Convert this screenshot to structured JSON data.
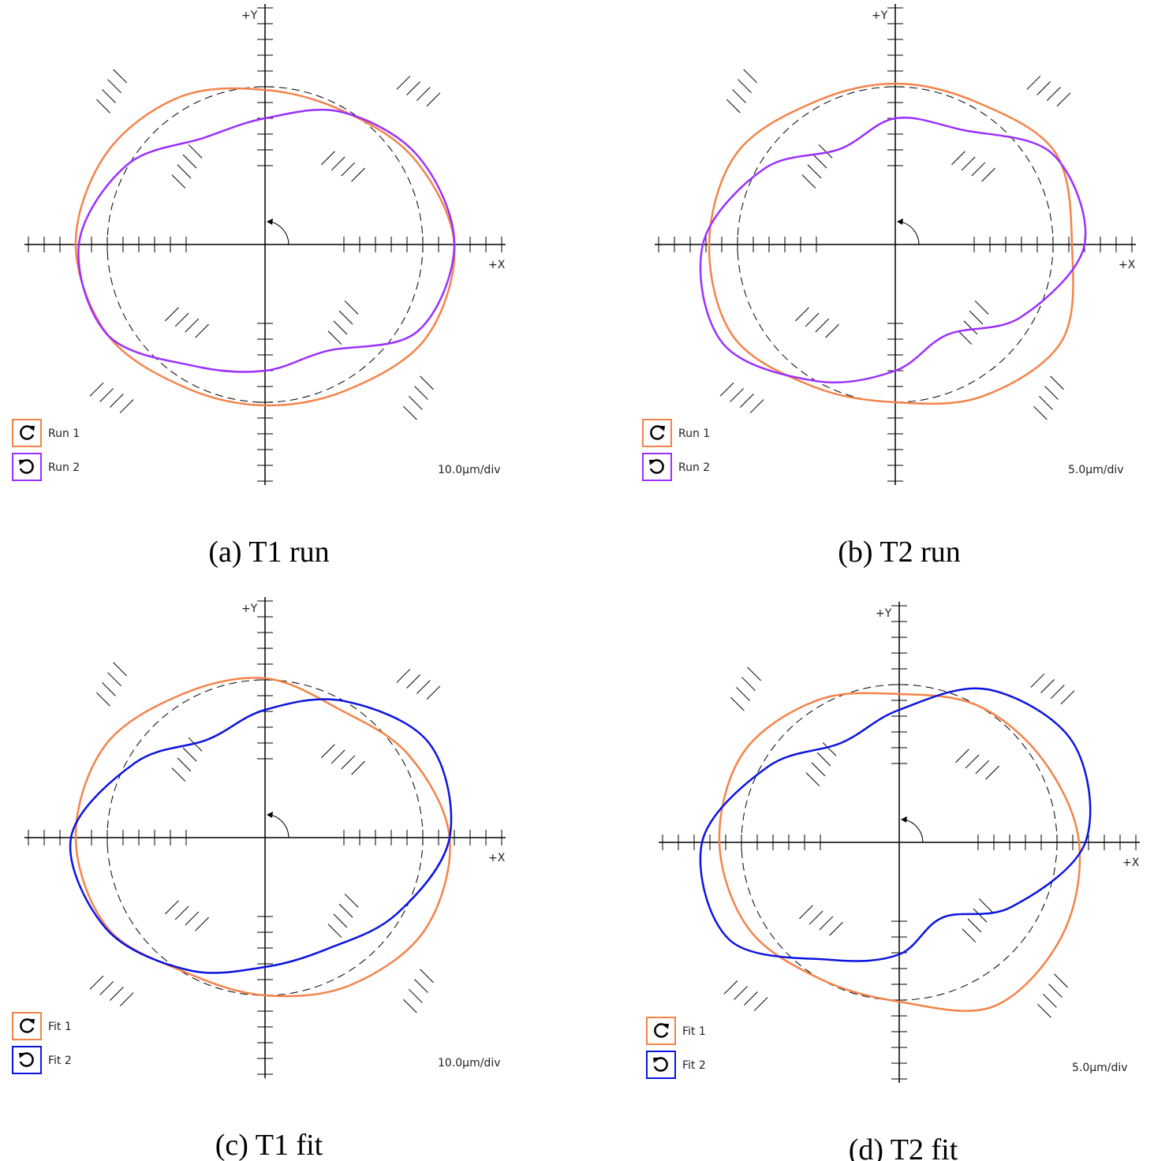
{
  "chart_data": [
    {
      "type": "polar",
      "title": "(a) T1 run",
      "x_label": "+X",
      "y_label": "+Y",
      "scale": {
        "value": 10,
        "label": "10.0µm/div"
      },
      "x": [
        0,
        30,
        60,
        90,
        120,
        150,
        180,
        210,
        240,
        270,
        300,
        330
      ],
      "series": [
        {
          "name": "Run 1",
          "color": "#f4834a",
          "values": [
            20,
            9,
            -2,
            -2,
            8,
            16,
            20,
            15,
            4,
            2,
            6,
            18
          ]
        },
        {
          "name": "Run 2",
          "color": "#9b30ff",
          "values": [
            20,
            12,
            -3,
            -20,
            -22,
            1,
            18,
            15,
            -11,
            -20,
            -22,
            11
          ]
        }
      ]
    },
    {
      "type": "polar",
      "title": "(b) T2 run",
      "x_label": "+X",
      "y_label": "+Y",
      "scale": {
        "value": 5,
        "label": "5.0µm/div"
      },
      "x": [
        0,
        30,
        60,
        90,
        120,
        150,
        180,
        210,
        240,
        270,
        300,
        330
      ],
      "series": [
        {
          "name": "Run 1",
          "color": "#f4834a",
          "values": [
            6,
            8.5,
            2,
            1,
            2,
            8,
            9,
            9,
            2,
            0,
            5.5,
            11
          ]
        },
        {
          "name": "Run 2",
          "color": "#9b30ff",
          "values": [
            10,
            7.5,
            -8,
            -10,
            -15,
            -2,
            11,
            13,
            0,
            -10,
            -17,
            -4
          ]
        }
      ]
    },
    {
      "type": "polar",
      "title": "(c) T1 fit",
      "x_label": "+X",
      "y_label": "+Y",
      "scale": {
        "value": 10,
        "label": "10.0µm/div"
      },
      "x": [
        0,
        30,
        60,
        90,
        120,
        150,
        180,
        210,
        240,
        270,
        300,
        330
      ],
      "series": [
        {
          "name": "Fit 1",
          "color": "#f4834a",
          "values": [
            17,
            5,
            -6,
            1,
            5,
            17,
            20,
            15,
            -1,
            0,
            8,
            17
          ]
        },
        {
          "name": "Fit 2",
          "color": "#0a14e0",
          "values": [
            17,
            20,
            0,
            -19,
            -28,
            -5,
            23,
            16,
            -3,
            -18,
            -19,
            -3.5
          ]
        }
      ]
    },
    {
      "type": "polar",
      "title": "(d) T2 fit",
      "x_label": "+X",
      "y_label": "+Y",
      "scale": {
        "value": 5,
        "label": "5.0µm/div"
      },
      "x": [
        0,
        30,
        60,
        90,
        120,
        150,
        180,
        210,
        240,
        270,
        300,
        330
      ],
      "series": [
        {
          "name": "Fit 1",
          "color": "#f4834a",
          "values": [
            7,
            2.5,
            0,
            -3,
            2,
            7,
            7,
            5,
            0,
            0.5,
            10,
            9.5
          ]
        },
        {
          "name": "Fit 2",
          "color": "#0a14e0",
          "values": [
            9,
            13.5,
            6,
            -8,
            -13.5,
            -2,
            12.5,
            12,
            -7,
            -14.5,
            -22.5,
            -9
          ]
        }
      ]
    }
  ]
}
